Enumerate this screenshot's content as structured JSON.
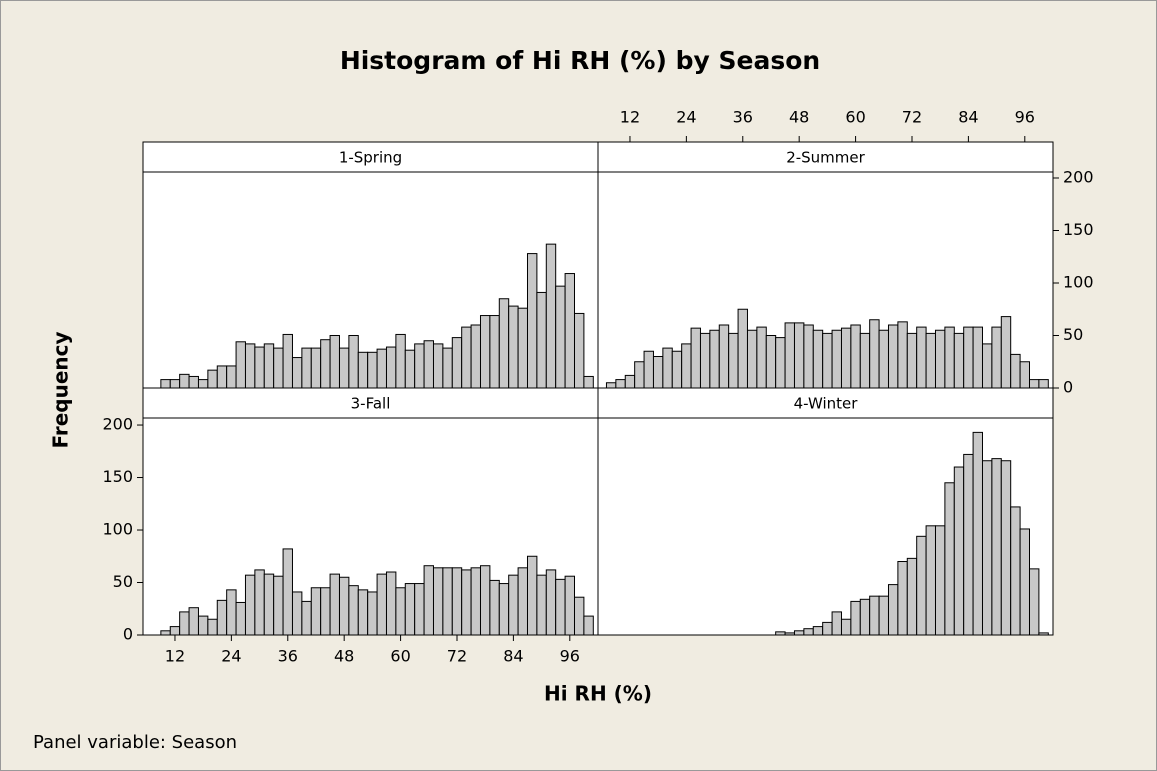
{
  "title": "Histogram of Hi RH (%) by Season",
  "x_label": "Hi RH (%)",
  "y_label": "Frequency",
  "note": "Panel variable: Season",
  "chart_data": [
    {
      "type": "histogram",
      "title": "1-Spring",
      "color": "#c8c8c8",
      "bins": [
        7,
        9,
        11,
        13,
        15,
        17,
        19,
        21,
        23,
        25,
        27,
        29,
        31,
        33,
        35,
        37,
        39,
        41,
        43,
        45,
        47,
        49,
        51,
        53,
        55,
        57,
        59,
        61,
        63,
        65,
        67,
        69,
        71,
        73,
        75,
        77,
        79,
        81,
        83,
        85,
        87,
        89,
        91,
        93,
        95,
        97,
        99,
        101
      ],
      "values": [
        0,
        8,
        8,
        13,
        11,
        8,
        17,
        21,
        21,
        44,
        42,
        39,
        42,
        38,
        51,
        29,
        38,
        38,
        46,
        50,
        38,
        50,
        34,
        34,
        37,
        39,
        51,
        36,
        42,
        45,
        42,
        38,
        48,
        58,
        60,
        69,
        69,
        85,
        78,
        76,
        128,
        91,
        137,
        97,
        109,
        71,
        11
      ],
      "xlim": [
        5.2,
        102
      ],
      "ylim": [
        0,
        205.7
      ]
    },
    {
      "type": "histogram",
      "title": "2-Summer",
      "color": "#c8c8c8",
      "bins": [
        7,
        9,
        11,
        13,
        15,
        17,
        19,
        21,
        23,
        25,
        27,
        29,
        31,
        33,
        35,
        37,
        39,
        41,
        43,
        45,
        47,
        49,
        51,
        53,
        55,
        57,
        59,
        61,
        63,
        65,
        67,
        69,
        71,
        73,
        75,
        77,
        79,
        81,
        83,
        85,
        87,
        89,
        91,
        93,
        95,
        97,
        99,
        101
      ],
      "values": [
        5,
        8,
        12,
        25,
        35,
        30,
        38,
        35,
        42,
        57,
        52,
        55,
        60,
        52,
        75,
        55,
        58,
        50,
        48,
        62,
        62,
        60,
        55,
        52,
        55,
        57,
        60,
        52,
        65,
        55,
        60,
        63,
        52,
        58,
        52,
        55,
        58,
        52,
        58,
        58,
        42,
        58,
        68,
        32,
        25,
        8,
        8
      ],
      "xlim": [
        5.2,
        102
      ],
      "ylim": [
        0,
        205.7
      ],
      "xticks": [
        12,
        24,
        36,
        48,
        60,
        72,
        84,
        96
      ],
      "yticks": [
        0,
        50,
        100,
        150,
        200
      ]
    },
    {
      "type": "histogram",
      "title": "3-Fall",
      "color": "#c8c8c8",
      "bins": [
        7,
        9,
        11,
        13,
        15,
        17,
        19,
        21,
        23,
        25,
        27,
        29,
        31,
        33,
        35,
        37,
        39,
        41,
        43,
        45,
        47,
        49,
        51,
        53,
        55,
        57,
        59,
        61,
        63,
        65,
        67,
        69,
        71,
        73,
        75,
        77,
        79,
        81,
        83,
        85,
        87,
        89,
        91,
        93,
        95,
        97,
        99,
        101
      ],
      "values": [
        0,
        4,
        8,
        22,
        26,
        18,
        15,
        33,
        43,
        31,
        57,
        62,
        58,
        56,
        82,
        41,
        32,
        45,
        45,
        58,
        55,
        47,
        43,
        41,
        58,
        60,
        45,
        49,
        49,
        66,
        64,
        64,
        64,
        62,
        64,
        66,
        52,
        49,
        57,
        64,
        75,
        57,
        62,
        53,
        56,
        36,
        18
      ],
      "xlim": [
        5.2,
        102
      ],
      "ylim": [
        0,
        206.7
      ],
      "xticks": [
        12,
        24,
        36,
        48,
        60,
        72,
        84,
        96
      ],
      "yticks": [
        0,
        50,
        100,
        150,
        200
      ]
    },
    {
      "type": "histogram",
      "title": "4-Winter",
      "color": "#c8c8c8",
      "bins": [
        7,
        9,
        11,
        13,
        15,
        17,
        19,
        21,
        23,
        25,
        27,
        29,
        31,
        33,
        35,
        37,
        39,
        41,
        43,
        45,
        47,
        49,
        51,
        53,
        55,
        57,
        59,
        61,
        63,
        65,
        67,
        69,
        71,
        73,
        75,
        77,
        79,
        81,
        83,
        85,
        87,
        89,
        91,
        93,
        95,
        97,
        99,
        101
      ],
      "values": [
        0,
        0,
        0,
        0,
        0,
        0,
        0,
        0,
        0,
        0,
        0,
        0,
        0,
        0,
        0,
        0,
        0,
        0,
        3,
        2,
        4,
        6,
        8,
        12,
        22,
        15,
        32,
        34,
        37,
        37,
        48,
        70,
        73,
        94,
        104,
        104,
        145,
        160,
        172,
        193,
        166,
        168,
        166,
        122,
        101,
        63,
        2
      ],
      "xlim": [
        5.2,
        102
      ],
      "ylim": [
        0,
        206.7
      ]
    }
  ]
}
